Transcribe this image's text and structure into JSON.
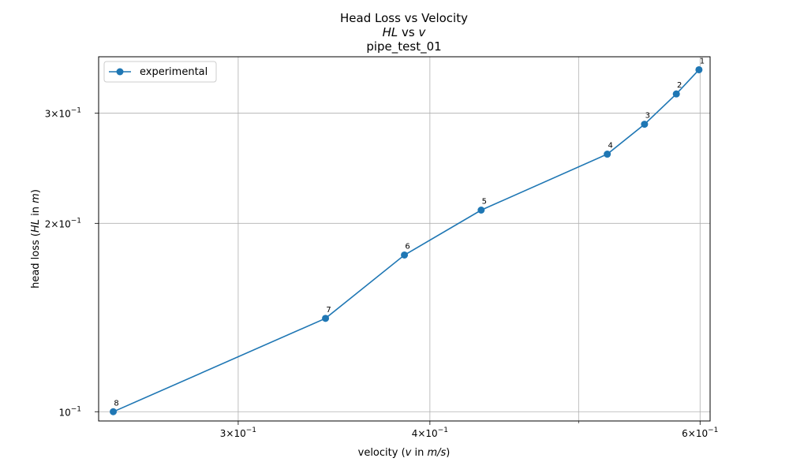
{
  "chart_data": {
    "type": "line",
    "title_line1": "Head Loss vs Velocity",
    "title_line2_a": "HL",
    "title_line2_b": " vs ",
    "title_line2_c": "v",
    "title_line3": "pipe_test_01",
    "xlabel_a": "velocity (",
    "xlabel_b": "v",
    "xlabel_c": " in ",
    "xlabel_d": "m/s",
    "xlabel_e": ")",
    "ylabel_a": "head loss (",
    "ylabel_b": "HL",
    "ylabel_c": " in ",
    "ylabel_d": "m",
    "ylabel_e": ")",
    "xscale": "log",
    "yscale": "log",
    "xlim": [
      0.2433,
      0.6091
    ],
    "ylim": [
      0.09665,
      0.3692
    ],
    "grid": true,
    "legend_placement": "upper-left",
    "x_ticks": [
      {
        "value": 0.3,
        "mantissa": "3",
        "base": "10",
        "exp": "−1"
      },
      {
        "value": 0.4,
        "mantissa": "4",
        "base": "10",
        "exp": "−1"
      },
      {
        "value": 0.6,
        "mantissa": "6",
        "base": "10",
        "exp": "−1"
      }
    ],
    "x_minor_grid": [
      0.5
    ],
    "y_ticks": [
      {
        "value": 0.1,
        "mantissa": "",
        "base": "10",
        "exp": "−1"
      },
      {
        "value": 0.2,
        "mantissa": "2",
        "base": "10",
        "exp": "−1"
      },
      {
        "value": 0.3,
        "mantissa": "3",
        "base": "10",
        "exp": "−1"
      }
    ],
    "series": [
      {
        "name": "experimental",
        "color": "#1f77b4",
        "x": [
          0.599,
          0.579,
          0.552,
          0.522,
          0.432,
          0.385,
          0.342,
          0.2487
        ],
        "y": [
          0.352,
          0.322,
          0.288,
          0.258,
          0.21,
          0.178,
          0.141,
          0.1
        ],
        "labels": [
          "1",
          "2",
          "3",
          "4",
          "5",
          "6",
          "7",
          "8"
        ]
      }
    ]
  }
}
